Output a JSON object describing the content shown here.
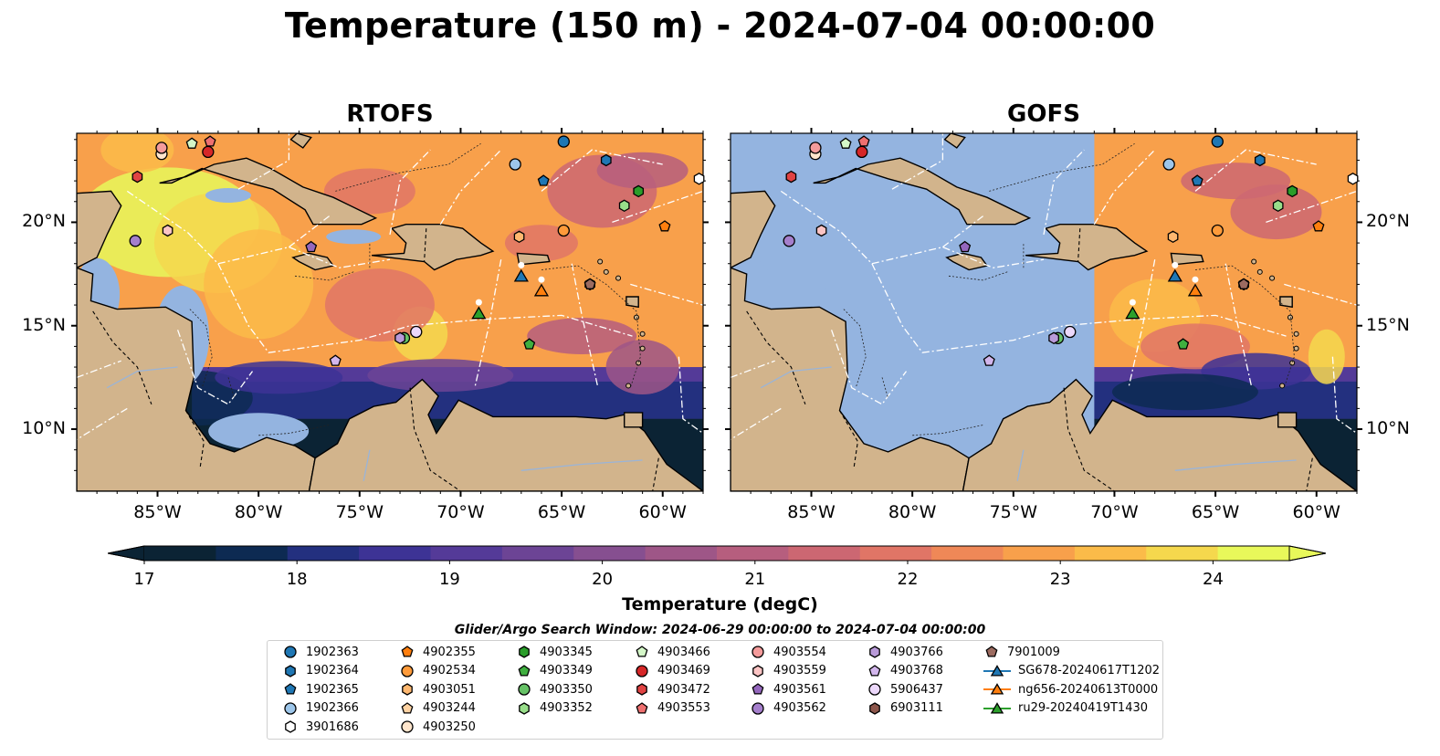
{
  "title": "Temperature (150 m) - 2024-07-04 00:00:00",
  "panels": [
    {
      "id": "rtofs",
      "title": "RTOFS"
    },
    {
      "id": "gofs",
      "title": "GOFS"
    }
  ],
  "map_extent": {
    "lon": [
      -89,
      -58
    ],
    "lat": [
      7,
      24.3
    ]
  },
  "x_ticks": [
    "85°W",
    "80°W",
    "75°W",
    "70°W",
    "65°W",
    "60°W"
  ],
  "y_ticks": [
    "20°N",
    "15°N",
    "10°N"
  ],
  "colorbar": {
    "label": "Temperature (degC)",
    "ticks": [
      "17",
      "18",
      "19",
      "20",
      "21",
      "22",
      "23",
      "24"
    ],
    "range": [
      17,
      24.5
    ],
    "extend": "both",
    "colormap": [
      "#0b2334",
      "#0d2a52",
      "#23307f",
      "#3d3395",
      "#543a98",
      "#6c4495",
      "#864f90",
      "#9e5687",
      "#b65e7e",
      "#cc6772",
      "#e07566",
      "#ef8857",
      "#f8a04b",
      "#fbbb49",
      "#f5d84d",
      "#e8f85a"
    ]
  },
  "search_window": "Glider/Argo Search Window: 2024-06-29 00:00:00 to 2024-07-04 00:00:00",
  "legend_items": [
    {
      "label": "1902363",
      "marker": "circle",
      "color": "#1f77b4"
    },
    {
      "label": "1902364",
      "marker": "hexagon",
      "color": "#1f77b4"
    },
    {
      "label": "1902365",
      "marker": "pentagon",
      "color": "#1f77b4"
    },
    {
      "label": "1902366",
      "marker": "circle",
      "color": "#9dc6ea"
    },
    {
      "label": "3901686",
      "marker": "hexagon",
      "color": "#ffffff"
    },
    {
      "label": "4902355",
      "marker": "pentagon",
      "color": "#ff7f0e"
    },
    {
      "label": "4902534",
      "marker": "circle",
      "color": "#ff9b3a"
    },
    {
      "label": "4903051",
      "marker": "hexagon",
      "color": "#ffb870"
    },
    {
      "label": "4903244",
      "marker": "pentagon",
      "color": "#ffd3a3"
    },
    {
      "label": "4903250",
      "marker": "circle",
      "color": "#ffe5cc"
    },
    {
      "label": "4903345",
      "marker": "hexagon",
      "color": "#2a9d2a"
    },
    {
      "label": "4903349",
      "marker": "pentagon",
      "color": "#3faf3f"
    },
    {
      "label": "4903350",
      "marker": "circle",
      "color": "#66c266"
    },
    {
      "label": "4903352",
      "marker": "hexagon",
      "color": "#98de8a"
    },
    {
      "label": "4903466",
      "marker": "pentagon",
      "color": "#d4f7c8"
    },
    {
      "label": "4903469",
      "marker": "circle",
      "color": "#d62728"
    },
    {
      "label": "4903472",
      "marker": "hexagon",
      "color": "#e04343"
    },
    {
      "label": "4903553",
      "marker": "pentagon",
      "color": "#ee7070"
    },
    {
      "label": "4903554",
      "marker": "circle",
      "color": "#f49b9b"
    },
    {
      "label": "4903559",
      "marker": "hexagon",
      "color": "#fbc4c4"
    },
    {
      "label": "4903561",
      "marker": "pentagon",
      "color": "#9467bd"
    },
    {
      "label": "4903562",
      "marker": "circle",
      "color": "#a57fcc"
    },
    {
      "label": "4903766",
      "marker": "hexagon",
      "color": "#b99ad9"
    },
    {
      "label": "4903768",
      "marker": "pentagon",
      "color": "#d2b6ec"
    },
    {
      "label": "5906437",
      "marker": "circle",
      "color": "#ecd8fb"
    },
    {
      "label": "6903111",
      "marker": "hexagon",
      "color": "#8c564b"
    },
    {
      "label": "7901009",
      "marker": "pentagon",
      "color": "#9c6b60"
    },
    {
      "label": "SG678-20240617T1202",
      "marker": "triangle-line",
      "color": "#1f77b4"
    },
    {
      "label": "ng656-20240613T0000",
      "marker": "triangle-line",
      "color": "#ff7f0e"
    },
    {
      "label": "ru29-20240419T1430",
      "marker": "triangle-line",
      "color": "#2ca02c"
    }
  ],
  "floats": [
    {
      "id": "1902363",
      "lon": -64.9,
      "lat": 23.9
    },
    {
      "id": "1902364",
      "lon": -62.8,
      "lat": 23.0
    },
    {
      "id": "1902365",
      "lon": -65.9,
      "lat": 22.0
    },
    {
      "id": "1902366",
      "lon": -67.3,
      "lat": 22.8
    },
    {
      "id": "3901686",
      "lon": -58.2,
      "lat": 22.1
    },
    {
      "id": "4902355",
      "lon": -59.9,
      "lat": 19.8
    },
    {
      "id": "4902534",
      "lon": -64.9,
      "lat": 19.6
    },
    {
      "id": "4903051",
      "lon": -67.1,
      "lat": 19.3
    },
    {
      "id": "4903244",
      "lon": -84.8,
      "lat": 23.3
    },
    {
      "id": "4903250",
      "lon": -84.8,
      "lat": 23.3
    },
    {
      "id": "4903345",
      "lon": -61.2,
      "lat": 21.5
    },
    {
      "id": "4903349",
      "lon": -66.6,
      "lat": 14.1
    },
    {
      "id": "4903350",
      "lon": -72.8,
      "lat": 14.4
    },
    {
      "id": "4903352",
      "lon": -61.9,
      "lat": 20.8
    },
    {
      "id": "4903466",
      "lon": -83.3,
      "lat": 23.8
    },
    {
      "id": "4903469",
      "lon": -82.5,
      "lat": 23.4
    },
    {
      "id": "4903472",
      "lon": -86.0,
      "lat": 22.2
    },
    {
      "id": "4903553",
      "lon": -82.4,
      "lat": 23.9
    },
    {
      "id": "4903554",
      "lon": -84.8,
      "lat": 23.6
    },
    {
      "id": "4903559",
      "lon": -84.5,
      "lat": 19.6
    },
    {
      "id": "4903561",
      "lon": -77.4,
      "lat": 18.8
    },
    {
      "id": "4903562",
      "lon": -86.1,
      "lat": 19.1
    },
    {
      "id": "4903766",
      "lon": -73.0,
      "lat": 14.4
    },
    {
      "id": "4903768",
      "lon": -76.2,
      "lat": 13.3
    },
    {
      "id": "5906437",
      "lon": -72.2,
      "lat": 14.7
    },
    {
      "id": "6903111",
      "lon": -63.6,
      "lat": 17.0
    },
    {
      "id": "7901009",
      "lon": -63.6,
      "lat": 17.0
    }
  ],
  "gliders": [
    {
      "id": "SG678-20240617T1202",
      "lon": -67.0,
      "lat": 17.4
    },
    {
      "id": "ng656-20240613T0000",
      "lon": -66.0,
      "lat": 16.7
    },
    {
      "id": "ru29-20240419T1430",
      "lon": -69.1,
      "lat": 15.6
    }
  ],
  "gofs_data_lon_start": -71.0
}
